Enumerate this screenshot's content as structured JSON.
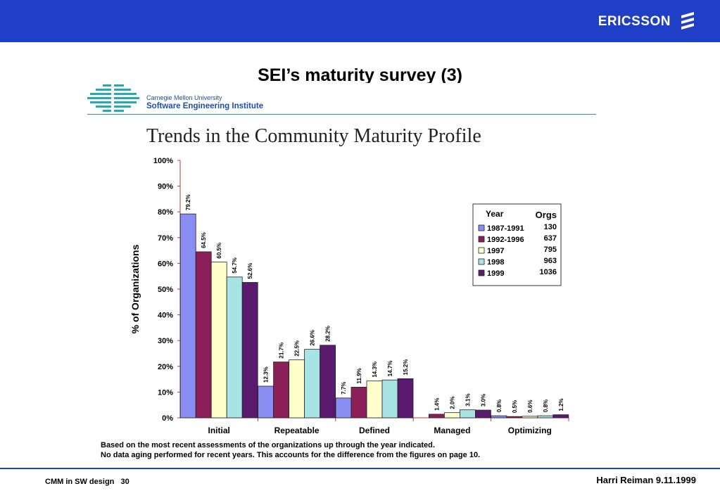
{
  "header": {
    "brand": "ERICSSON",
    "brand_icon": "ericsson-logo-icon",
    "bar_color": "#1f3fc6"
  },
  "slide": {
    "title": "SEI’s maturity survey (3)"
  },
  "sei": {
    "university": "Carnegie Mellon University",
    "institute": "Software Engineering Institute",
    "logo_icon": "sei-logo-icon"
  },
  "chart_data": {
    "type": "bar",
    "title": "Trends in the Community Maturity Profile",
    "ylabel": "% of Organizations",
    "xlabel": "",
    "ylim": [
      0,
      100
    ],
    "yticks": [
      "0%",
      "10%",
      "20%",
      "30%",
      "40%",
      "50%",
      "60%",
      "70%",
      "80%",
      "90%",
      "100%"
    ],
    "grid": false,
    "categories": [
      "Initial",
      "Repeatable",
      "Defined",
      "Managed",
      "Optimizing"
    ],
    "series": [
      {
        "name": "1987-1991",
        "orgs": "130",
        "color": "#8a8ef2",
        "values": [
          79.2,
          12.3,
          7.7,
          0.0,
          0.8
        ],
        "labels": [
          "79.2%",
          "12.3%",
          "7.7%",
          "",
          "0.8%"
        ]
      },
      {
        "name": "1992-1996",
        "orgs": "637",
        "color": "#8b1f58",
        "values": [
          64.5,
          21.7,
          11.9,
          1.4,
          0.5
        ],
        "labels": [
          "64.5%",
          "21.7%",
          "11.9%",
          "1.4%",
          "0.5%"
        ]
      },
      {
        "name": "1997",
        "orgs": "795",
        "color": "#ffffcc",
        "values": [
          60.5,
          22.5,
          14.3,
          2.0,
          0.6
        ],
        "labels": [
          "60.5%",
          "22.5%",
          "14.3%",
          "2.0%",
          "0.6%"
        ]
      },
      {
        "name": "1998",
        "orgs": "963",
        "color": "#a8e4e4",
        "values": [
          54.7,
          26.6,
          14.7,
          3.1,
          0.8
        ],
        "labels": [
          "54.7%",
          "26.6%",
          "14.7%",
          "3.1%",
          "0.8%"
        ]
      },
      {
        "name": "1999",
        "orgs": "1036",
        "color": "#5a1a6e",
        "values": [
          52.6,
          28.2,
          15.2,
          3.0,
          1.2
        ],
        "labels": [
          "52.6%",
          "28.2%",
          "15.2%",
          "3.0%",
          "1.2%"
        ]
      }
    ],
    "legend": {
      "placement": "top-right",
      "year_header": "Year",
      "orgs_header": "Orgs"
    }
  },
  "notes": {
    "line1": "Based on the most recent assessments of the organizations up through the year indicated.",
    "line2": "No data aging performed for recent years. This accounts for the difference from the figures on page 10."
  },
  "footer": {
    "left": "CMM in SW design   30",
    "right": "Harri Reiman 9.11.1999"
  }
}
